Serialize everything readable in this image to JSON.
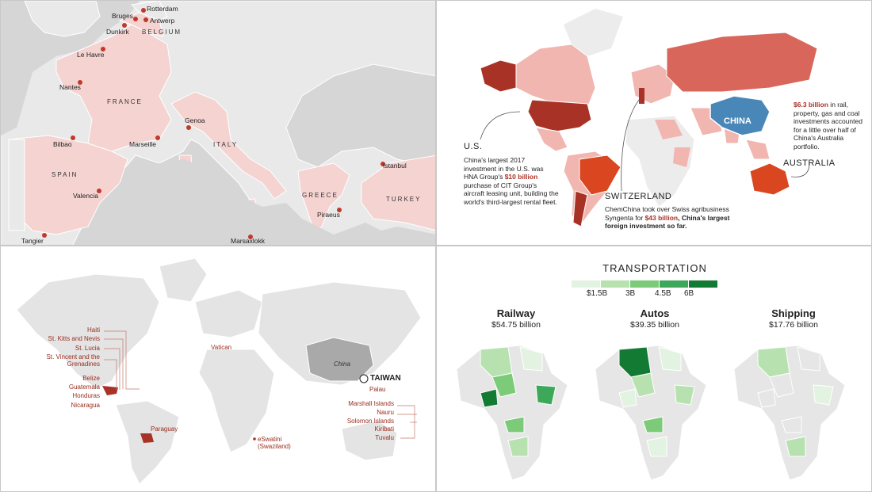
{
  "europe_map": {
    "cities": [
      "Rotterdam",
      "Bruges",
      "Antwerp",
      "Dunkirk",
      "Le Havre",
      "Nantes",
      "Bilbao",
      "Marseille",
      "Genoa",
      "Valencia",
      "Tangier",
      "Piraeus",
      "Istanbul",
      "Marsaxlokk"
    ],
    "countries": [
      "BELGIUM",
      "FRANCE",
      "SPAIN",
      "ITALY",
      "GREECE",
      "TURKEY"
    ]
  },
  "world_investment_map": {
    "us": {
      "title": "U.S.",
      "text_pre": "China's largest 2017 investment in the U.S. was HNA Group's ",
      "amount": "$10 billion",
      "text_post": " purchase of CIT Group's aircraft leasing unit, building the world's third-largest rental fleet."
    },
    "switzerland": {
      "title": "SWITZERLAND",
      "text_pre": "ChemChina took over Swiss agribusiness Syngenta for ",
      "amount": "$43 billion",
      "text_post": ", China's largest foreign investment so far."
    },
    "australia": {
      "title": "AUSTRALIA",
      "amount": "$6.3 billion",
      "text_post": " in rail, property, gas and coal investments accounted for a little over half of China's Australia portfolio."
    },
    "china_label": "CHINA"
  },
  "taiwan_allies_map": {
    "china_label": "China",
    "taiwan_label": "TAIWAN",
    "americas": [
      "Haiti",
      "St. Kitts and Nevis",
      "St. Lucia",
      "St. Vincent and the Grenadines",
      "Belize",
      "Guatemala",
      "Honduras",
      "Nicaragua"
    ],
    "paraguay": "Paraguay",
    "vatican": "Vatican",
    "eswatini": "eSwatini (Swaziland)",
    "pacific": [
      "Palau",
      "Marshall Islands",
      "Nauru",
      "Solomon Islands",
      "Kiribati",
      "Tuvalu"
    ]
  },
  "transportation": {
    "title": "TRANSPORTATION",
    "legend": [
      "$1.5B",
      "3B",
      "4.5B",
      "6B"
    ],
    "legend_colors": [
      "#e3f3e1",
      "#b7e2b0",
      "#7ccb78",
      "#3ea85a",
      "#137a33"
    ],
    "maps": [
      {
        "title": "Railway",
        "subtitle": "$54.75 billion"
      },
      {
        "title": "Autos",
        "subtitle": "$39.35 billion"
      },
      {
        "title": "Shipping",
        "subtitle": "$17.76 billion"
      }
    ]
  },
  "colors": {
    "land": "#e9e9e9",
    "sea": "#d6d6d6",
    "highlight_land": "#f4d3d1",
    "port_dot": "#c0392b",
    "china_blue": "#4a87b9",
    "invest_dark": "#a93226",
    "invest_mid": "#d9665b",
    "invest_light": "#f1b6b0"
  }
}
